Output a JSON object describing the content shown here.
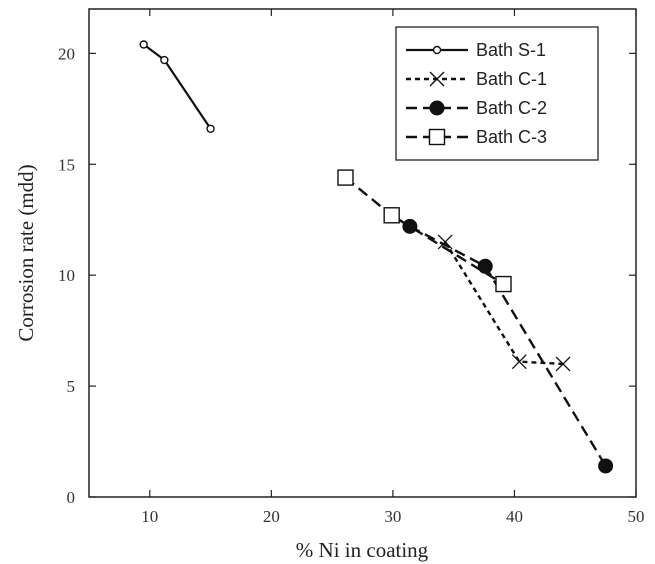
{
  "chart_data": {
    "type": "line",
    "title": "",
    "xlabel": "% Ni in coating",
    "ylabel": "Corrosion rate (mdd)",
    "xlim": [
      5,
      50
    ],
    "ylim": [
      0,
      22
    ],
    "xticks": [
      10,
      20,
      30,
      40,
      50
    ],
    "yticks": [
      0,
      5,
      10,
      15,
      20
    ],
    "grid": false,
    "legend_position": "top-right",
    "series": [
      {
        "name": "Bath S-1",
        "line_style": "solid",
        "marker": "small-open-circle",
        "color": "#111111",
        "points": [
          [
            9.5,
            20.4
          ],
          [
            11.2,
            19.7
          ],
          [
            15.0,
            16.6
          ]
        ]
      },
      {
        "name": "Bath C-1",
        "line_style": "short-dash",
        "marker": "x",
        "color": "#111111",
        "points": [
          [
            34.3,
            11.5
          ],
          [
            40.4,
            6.1
          ],
          [
            44.0,
            6.0
          ]
        ]
      },
      {
        "name": "Bath C-2",
        "line_style": "long-dash",
        "marker": "filled-circle",
        "color": "#111111",
        "points": [
          [
            31.4,
            12.2
          ],
          [
            37.6,
            10.4
          ],
          [
            47.5,
            1.4
          ]
        ]
      },
      {
        "name": "Bath C-3",
        "line_style": "long-dash",
        "marker": "open-square",
        "color": "#111111",
        "points": [
          [
            26.1,
            14.4
          ],
          [
            29.9,
            12.7
          ],
          [
            39.1,
            9.6
          ]
        ]
      }
    ]
  }
}
